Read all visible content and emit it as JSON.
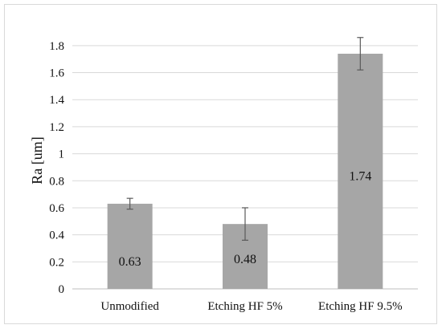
{
  "chart_data": {
    "type": "bar",
    "title": "",
    "xlabel": "",
    "ylabel": "Ra [um]",
    "categories": [
      "Unmodified",
      "Etching HF 5%",
      "Etching HF 9.5%"
    ],
    "series": [
      {
        "name": "",
        "values": [
          0.63,
          0.48,
          1.74
        ],
        "error": [
          0.04,
          0.12,
          0.12
        ],
        "data_labels": [
          "0.63",
          "0.48",
          "1.74"
        ]
      }
    ],
    "ylim": [
      0,
      1.9
    ],
    "yticks": [
      0,
      0.2,
      0.4,
      0.6,
      0.8,
      1,
      1.2,
      1.4,
      1.6,
      1.8
    ],
    "ytick_labels": [
      "0",
      "0.2",
      "0.4",
      "0.6",
      "0.8",
      "1",
      "1.2",
      "1.4",
      "1.6",
      "1.8"
    ],
    "grid": true,
    "legend": "none",
    "colors": {
      "bar": "#a6a6a6",
      "grid": "#d9d9d9",
      "frame": "#d9d9d9",
      "axis": "#bfbfbf",
      "error": "#595959",
      "text": "#111111"
    }
  }
}
